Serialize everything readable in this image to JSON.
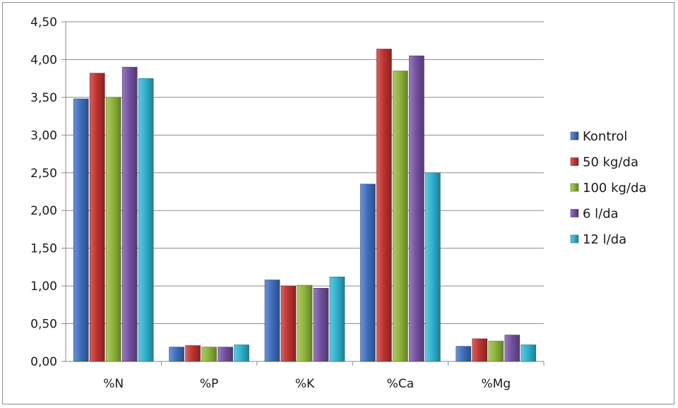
{
  "chart_data": {
    "type": "bar",
    "title": "",
    "xlabel": "",
    "ylabel": "",
    "categories": [
      "%N",
      "%P",
      "%K",
      "%Ca",
      "%Mg"
    ],
    "y_ticks": [
      "0,00",
      "0,50",
      "1,00",
      "1,50",
      "2,00",
      "2,50",
      "3,00",
      "3,50",
      "4,00",
      "4,50"
    ],
    "ylim": [
      0,
      4.5
    ],
    "grid": true,
    "legend_position": "right",
    "series": [
      {
        "name": "Kontrol",
        "color": "#3f6fc0",
        "values": [
          3.48,
          0.19,
          1.08,
          2.35,
          0.2
        ]
      },
      {
        "name": "50 kg/da",
        "color": "#c0332f",
        "values": [
          3.82,
          0.21,
          1.0,
          4.14,
          0.3
        ]
      },
      {
        "name": "100 kg/da",
        "color": "#8fb63a",
        "values": [
          3.5,
          0.19,
          1.01,
          3.85,
          0.27
        ]
      },
      {
        "name": "6 l/da",
        "color": "#7451a2",
        "values": [
          3.9,
          0.19,
          0.97,
          4.05,
          0.35
        ]
      },
      {
        "name": "12 l/da",
        "color": "#2fb3cf",
        "values": [
          3.75,
          0.22,
          1.12,
          2.5,
          0.22
        ]
      }
    ]
  }
}
